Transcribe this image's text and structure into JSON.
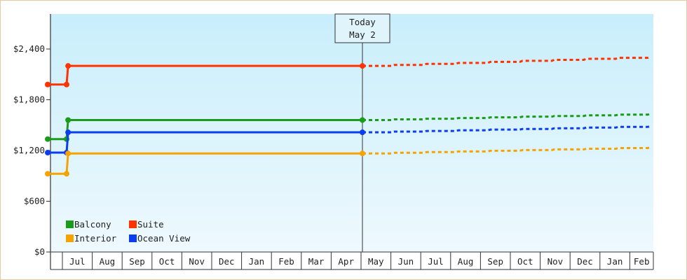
{
  "chart_data": {
    "type": "line",
    "y_tick_labels": [
      "$0",
      "$600",
      "$1,200",
      "$1,800",
      "$2,400"
    ],
    "y_ticks": [
      0,
      600,
      1200,
      1800,
      2400
    ],
    "ylim": [
      0,
      2400
    ],
    "month_labels": [
      "Jul",
      "Aug",
      "Sep",
      "Oct",
      "Nov",
      "Dec",
      "Jan",
      "Feb",
      "Mar",
      "Apr",
      "May",
      "Jun",
      "Jul",
      "Aug",
      "Sep",
      "Oct",
      "Nov",
      "Dec",
      "Jan",
      "Feb"
    ],
    "today": {
      "line1": "Today",
      "line2": "May 2"
    },
    "legend": {
      "placement": "bottom-left",
      "items": [
        {
          "name": "Balcony",
          "color": "#1a9c1a"
        },
        {
          "name": "Suite",
          "color": "#ff3300"
        },
        {
          "name": "Interior",
          "color": "#f5a300"
        },
        {
          "name": "Ocean View",
          "color": "#0a3cf0"
        }
      ]
    },
    "series": [
      {
        "name": "Suite",
        "color": "#ff3300",
        "history_months": [
          -0.6,
          0,
          0.05,
          10.0
        ],
        "history_values": [
          1980,
          1980,
          2200,
          2200
        ],
        "forecast_values": [
          2200,
          2212,
          2224,
          2236,
          2248,
          2260,
          2272,
          2284,
          2296,
          2308
        ]
      },
      {
        "name": "Balcony",
        "color": "#1a9c1a",
        "history_months": [
          -0.6,
          0,
          0.05,
          10.0
        ],
        "history_values": [
          1335,
          1335,
          1560,
          1560
        ],
        "forecast_values": [
          1560,
          1568,
          1576,
          1584,
          1592,
          1600,
          1608,
          1616,
          1624,
          1632
        ]
      },
      {
        "name": "Ocean View",
        "color": "#0a3cf0",
        "history_months": [
          -0.6,
          0,
          0.05,
          10.0
        ],
        "history_values": [
          1175,
          1175,
          1415,
          1415
        ],
        "forecast_values": [
          1415,
          1423,
          1431,
          1439,
          1447,
          1455,
          1463,
          1471,
          1479,
          1487
        ]
      },
      {
        "name": "Interior",
        "color": "#f5a300",
        "history_months": [
          -0.6,
          0,
          0.05,
          10.0
        ],
        "history_values": [
          925,
          925,
          1165,
          1165
        ],
        "forecast_values": [
          1165,
          1173,
          1181,
          1189,
          1197,
          1205,
          1213,
          1221,
          1229,
          1237
        ]
      }
    ]
  }
}
